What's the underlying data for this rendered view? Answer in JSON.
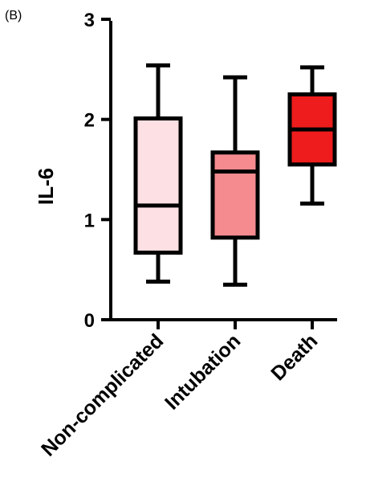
{
  "panel_label": "(B)",
  "chart_data": {
    "type": "box",
    "title": "",
    "xlabel": "",
    "ylabel": "IL-6",
    "ylim": [
      0,
      3
    ],
    "yticks": [
      "0",
      "1",
      "2",
      "3"
    ],
    "grid": false,
    "categories": [
      "Non-complicated",
      "Intubation",
      "Death"
    ],
    "boxes": [
      {
        "category": "Non-complicated",
        "min": 0.38,
        "q1": 0.67,
        "median": 1.14,
        "q3": 2.01,
        "max": 2.54,
        "color": "#fde0e3"
      },
      {
        "category": "Intubation",
        "min": 0.35,
        "q1": 0.82,
        "median": 1.48,
        "q3": 1.67,
        "max": 2.42,
        "color": "#f58a8f"
      },
      {
        "category": "Death",
        "min": 1.16,
        "q1": 1.55,
        "median": 1.9,
        "q3": 2.25,
        "max": 2.52,
        "color": "#ee1c1c"
      }
    ]
  }
}
